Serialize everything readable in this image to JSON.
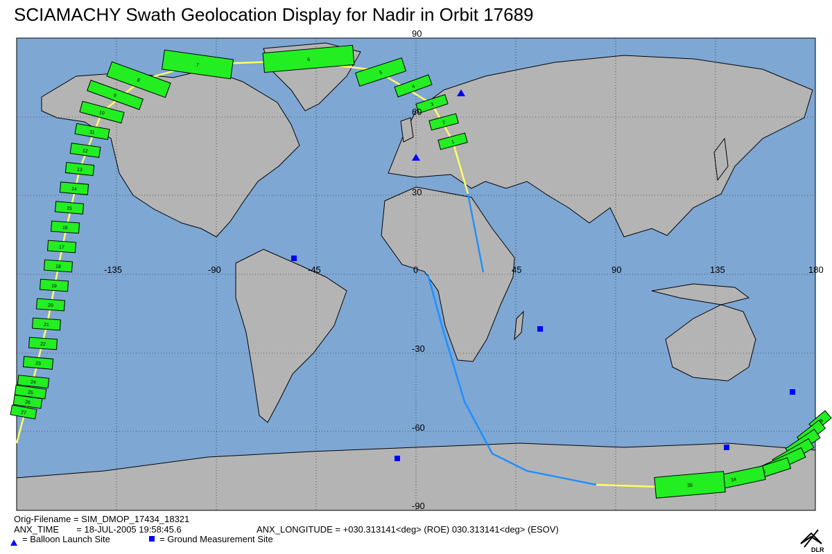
{
  "header": {
    "title": "SCIAMACHY Swath Geolocation Display for Nadir in Orbit 17689"
  },
  "map": {
    "lon_labels": [
      "-135",
      "-90",
      "-45",
      "0",
      "45",
      "90",
      "135",
      "180"
    ],
    "lat_labels": [
      "90",
      "60",
      "30",
      "-30",
      "-60",
      "-90"
    ],
    "swath_labels": [
      "1",
      "2",
      "3",
      "4",
      "5",
      "6",
      "7",
      "8",
      "9",
      "10",
      "11",
      "12",
      "13",
      "14",
      "15",
      "16",
      "17",
      "18",
      "19",
      "20",
      "21",
      "22",
      "23",
      "24",
      "25",
      "26",
      "27",
      "28",
      "29",
      "30",
      "31",
      "32",
      "33",
      "34",
      "35"
    ]
  },
  "footer": {
    "orig_filename": "Orig-Filename = SIM_DMOP_17434_18321",
    "anx_time": "ANX_TIME       = 18-JUL-2005 19:58:45.6",
    "anx_longitude": "ANX_LONGITUDE = +030.313141<deg> (ROE) 030.313141<deg> (ESOV)",
    "legend": [
      "= Balloon Launch Site",
      "= Ground Measurement Site"
    ]
  },
  "logo": "DLR"
}
